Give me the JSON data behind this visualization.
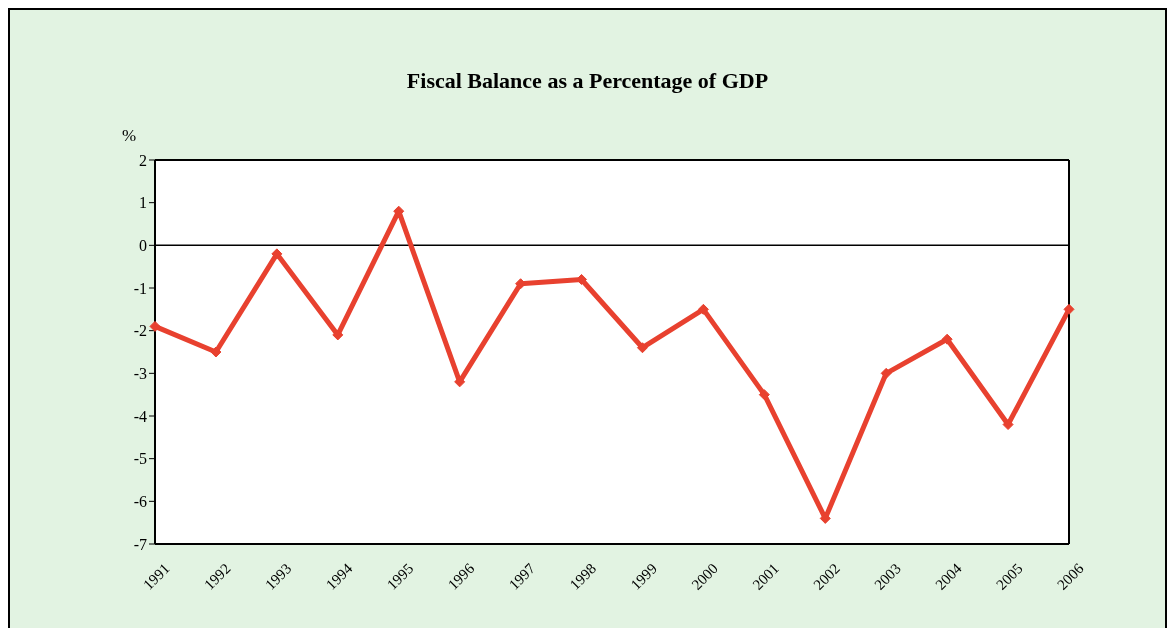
{
  "chart_data": {
    "type": "line",
    "title": "Fiscal Balance as a Percentage of GDP",
    "ylabel": "%",
    "categories": [
      "1991",
      "1992",
      "1993",
      "1994",
      "1995",
      "1996",
      "1997",
      "1998",
      "1999",
      "2000",
      "2001",
      "2002",
      "2003",
      "2004",
      "2005",
      "2006"
    ],
    "series": [
      {
        "color": "#e8412f",
        "values": [
          -1.9,
          -2.5,
          -0.2,
          -2.1,
          0.8,
          -3.2,
          -0.9,
          -0.8,
          -2.4,
          -1.5,
          -3.5,
          -6.4,
          -3.0,
          -2.2,
          -4.2,
          -1.5
        ]
      }
    ],
    "ylim": [
      -7,
      2
    ],
    "yticks": [
      -7,
      -6,
      -5,
      -4,
      -3,
      -2,
      -1,
      0,
      1,
      2
    ],
    "marker": "diamond",
    "line_style": "solid"
  }
}
